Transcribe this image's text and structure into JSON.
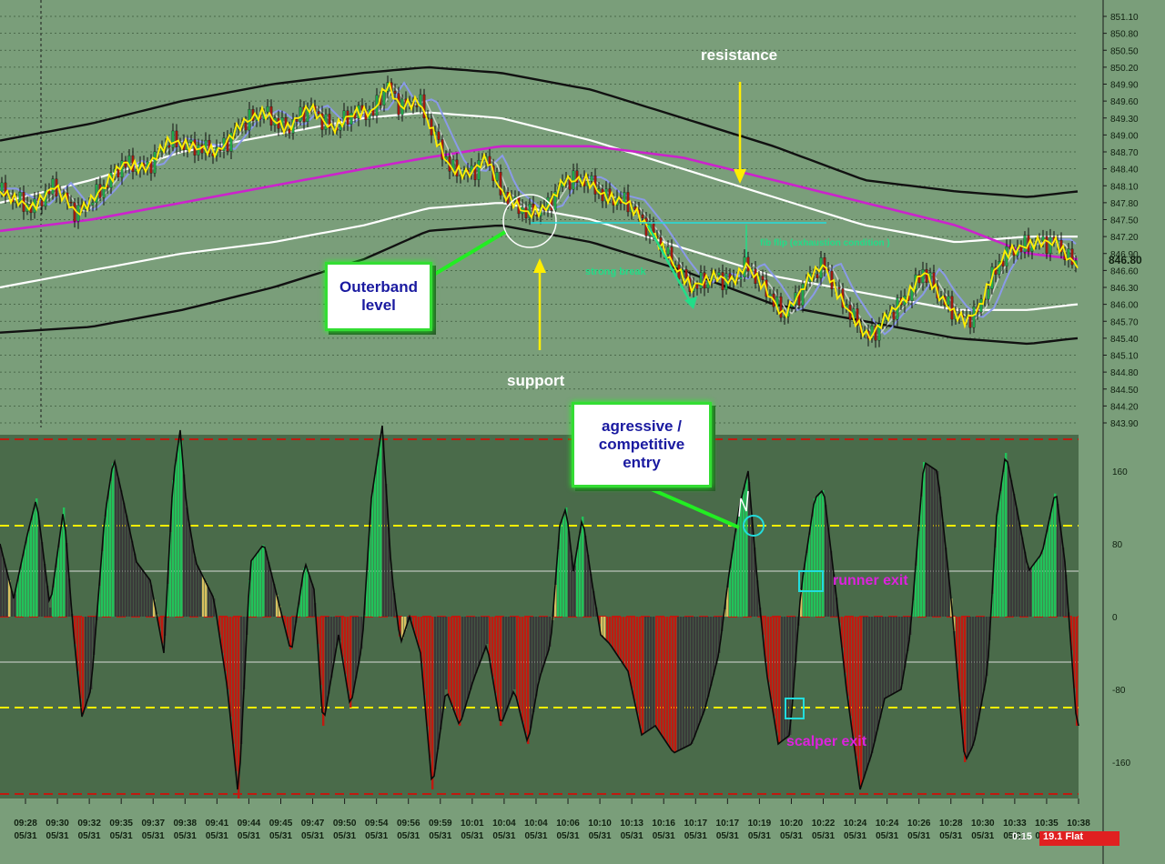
{
  "chart_data": [
    {
      "type": "candlestick",
      "panel": "price",
      "y_ticks": [
        "851.10",
        "850.80",
        "850.50",
        "850.20",
        "849.90",
        "849.60",
        "849.30",
        "849.00",
        "848.70",
        "848.40",
        "848.10",
        "847.80",
        "847.50",
        "847.20",
        "846.90",
        "846.60",
        "846.30",
        "846.00",
        "845.70",
        "845.40",
        "845.10",
        "844.80",
        "844.50",
        "844.20",
        "843.90"
      ],
      "current_price": "846.80",
      "ylim": [
        843.9,
        851.1
      ],
      "price_path_x": [
        0,
        35,
        60,
        85,
        110,
        135,
        160,
        185,
        210,
        240,
        265,
        290,
        315,
        340,
        365,
        390,
        410,
        425,
        440,
        460,
        480,
        495,
        515,
        535,
        550,
        565,
        580,
        600,
        620,
        645,
        665,
        690,
        715,
        740,
        760,
        785,
        805,
        820,
        840,
        860,
        875,
        890,
        905,
        920,
        940,
        955,
        975,
        995,
        1015,
        1030,
        1045,
        1060,
        1075,
        1090,
        1105,
        1120,
        1140,
        1160,
        1175,
        1183
      ],
      "price_path_y": [
        848.0,
        847.7,
        848.1,
        847.6,
        848.0,
        848.5,
        848.4,
        848.9,
        848.8,
        848.7,
        849.2,
        849.4,
        849.1,
        849.5,
        849.1,
        849.4,
        849.4,
        849.9,
        849.5,
        849.6,
        848.9,
        848.4,
        848.3,
        848.6,
        848.0,
        847.8,
        847.6,
        847.7,
        848.2,
        848.2,
        847.9,
        847.8,
        847.3,
        846.7,
        846.3,
        846.5,
        846.4,
        846.7,
        846.3,
        845.8,
        846.1,
        846.5,
        846.7,
        846.2,
        845.7,
        845.4,
        845.8,
        846.1,
        846.6,
        846.2,
        845.9,
        845.7,
        845.9,
        846.5,
        846.9,
        847.0,
        847.1,
        847.1,
        846.8,
        846.7
      ],
      "ma_magenta_y": [
        847.3,
        847.5,
        847.8,
        848.1,
        848.4,
        848.6,
        848.8,
        848.8,
        848.6,
        848.2,
        847.8,
        847.4,
        846.9,
        846.8
      ],
      "ma_magenta_x": [
        0,
        100,
        200,
        300,
        400,
        470,
        550,
        650,
        750,
        850,
        950,
        1050,
        1130,
        1183
      ],
      "band_white_upper": [
        847.8,
        848.2,
        848.7,
        849.0,
        849.3,
        849.4,
        849.3,
        848.9,
        848.4,
        847.9,
        847.4,
        847.1,
        847.2,
        847.2
      ],
      "band_white_lower": [
        846.3,
        846.6,
        846.9,
        847.1,
        847.4,
        847.7,
        847.8,
        847.5,
        847.0,
        846.5,
        846.2,
        845.9,
        845.9,
        846.0
      ],
      "band_black_upper": [
        848.9,
        849.2,
        849.6,
        849.9,
        850.1,
        850.2,
        850.1,
        849.8,
        849.3,
        848.8,
        848.2,
        848.0,
        847.9,
        848.0
      ],
      "band_black_lower": [
        845.5,
        845.6,
        845.9,
        846.3,
        846.8,
        847.3,
        847.4,
        847.1,
        846.6,
        846.0,
        845.7,
        845.4,
        845.3,
        845.4
      ]
    },
    {
      "type": "histogram",
      "panel": "oscillator",
      "y_ticks": [
        "160",
        "80",
        "0",
        "-80",
        "-160"
      ],
      "ylim": [
        -200,
        200
      ],
      "x_ticks": [
        {
          "time": "09:28",
          "date": "05/31"
        },
        {
          "time": "09:30",
          "date": "05/31"
        },
        {
          "time": "09:32",
          "date": "05/31"
        },
        {
          "time": "09:35",
          "date": "05/31"
        },
        {
          "time": "09:37",
          "date": "05/31"
        },
        {
          "time": "09:38",
          "date": "05/31"
        },
        {
          "time": "09:41",
          "date": "05/31"
        },
        {
          "time": "09:44",
          "date": "05/31"
        },
        {
          "time": "09:45",
          "date": "05/31"
        },
        {
          "time": "09:47",
          "date": "05/31"
        },
        {
          "time": "09:50",
          "date": "05/31"
        },
        {
          "time": "09:54",
          "date": "05/31"
        },
        {
          "time": "09:56",
          "date": "05/31"
        },
        {
          "time": "09:59",
          "date": "05/31"
        },
        {
          "time": "10:01",
          "date": "05/31"
        },
        {
          "time": "10:04",
          "date": "05/31"
        },
        {
          "time": "10:04",
          "date": "05/31"
        },
        {
          "time": "10:06",
          "date": "05/31"
        },
        {
          "time": "10:10",
          "date": "05/31"
        },
        {
          "time": "10:13",
          "date": "05/31"
        },
        {
          "time": "10:16",
          "date": "05/31"
        },
        {
          "time": "10:17",
          "date": "05/31"
        },
        {
          "time": "10:17",
          "date": "05/31"
        },
        {
          "time": "10:19",
          "date": "05/31"
        },
        {
          "time": "10:20",
          "date": "05/31"
        },
        {
          "time": "10:22",
          "date": "05/31"
        },
        {
          "time": "10:24",
          "date": "05/31"
        },
        {
          "time": "10:24",
          "date": "05/31"
        },
        {
          "time": "10:26",
          "date": "05/31"
        },
        {
          "time": "10:28",
          "date": "05/31"
        },
        {
          "time": "10:30",
          "date": "05/31"
        },
        {
          "time": "10:33",
          "date": "05/31"
        },
        {
          "time": "10:35",
          "date": "05/31"
        },
        {
          "time": "10:38",
          "date": "05/31"
        }
      ],
      "osc_x": [
        0,
        15,
        30,
        40,
        55,
        70,
        80,
        90,
        100,
        115,
        125,
        135,
        150,
        165,
        180,
        190,
        198,
        205,
        215,
        235,
        250,
        262,
        275,
        290,
        305,
        320,
        335,
        345,
        355,
        372,
        385,
        398,
        408,
        420,
        430,
        440,
        450,
        462,
        475,
        490,
        505,
        520,
        535,
        550,
        565,
        580,
        592,
        605,
        615,
        622,
        630,
        640,
        650,
        660,
        670,
        690,
        705,
        720,
        740,
        760,
        775,
        790,
        800,
        812,
        822,
        832,
        842,
        855,
        868,
        880,
        895,
        905,
        918,
        930,
        945,
        958,
        972,
        990,
        1000,
        1015,
        1030,
        1045,
        1060,
        1070,
        1085,
        1095,
        1105,
        1115,
        1130,
        1145,
        1160,
        1170,
        1183
      ],
      "osc_y": [
        80,
        20,
        90,
        130,
        10,
        120,
        -10,
        -110,
        -80,
        110,
        175,
        130,
        60,
        40,
        -40,
        150,
        205,
        120,
        60,
        20,
        -80,
        -200,
        60,
        80,
        20,
        -40,
        60,
        30,
        -120,
        -20,
        -100,
        -30,
        130,
        210,
        50,
        -30,
        0,
        -40,
        -190,
        -80,
        -120,
        -70,
        -30,
        -120,
        -80,
        -140,
        -70,
        -30,
        100,
        120,
        50,
        110,
        40,
        -20,
        -30,
        -60,
        -130,
        -120,
        -150,
        -140,
        -100,
        -40,
        40,
        120,
        160,
        40,
        -60,
        -140,
        -130,
        30,
        130,
        140,
        30,
        -80,
        -190,
        -150,
        -90,
        -80,
        -20,
        170,
        160,
        20,
        -160,
        -140,
        -60,
        110,
        180,
        130,
        50,
        70,
        140,
        60,
        -120
      ],
      "levels": [
        160,
        100,
        50,
        0,
        -50,
        -100,
        -200
      ]
    }
  ],
  "annotations": {
    "resistance": "resistance",
    "support": "support",
    "outerband": "Outerband\nlevel",
    "entry": "agressive /\ncompetitive\nentry",
    "strong_break": "strong break",
    "fib_flip": "fib flip (exhaustion condition )",
    "runner_exit": "runner exit",
    "scalper_exit": "scalper exit"
  },
  "status": {
    "time": "0:15",
    "position": "19.1 Flat"
  },
  "colors": {
    "background": "#7a9e7a",
    "osc_background": "#4a6b4a",
    "bull": "#22c25a",
    "bear": "#c01a10",
    "neutral": "#3a3a3a",
    "magenta": "#cc22cc",
    "yellow_line": "#ffee00"
  }
}
